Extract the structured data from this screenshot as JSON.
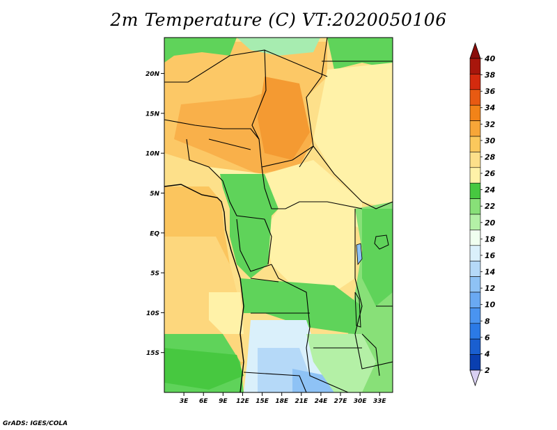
{
  "title": "2m Temperature (C) VT:2020050106",
  "credit": "GrADS: IGES/COLA",
  "map": {
    "lon_labels": [
      "3E",
      "6E",
      "9E",
      "12E",
      "15E",
      "18E",
      "21E",
      "24E",
      "27E",
      "30E",
      "33E"
    ],
    "lat_labels": [
      "20N",
      "15N",
      "10N",
      "5N",
      "EQ",
      "5S",
      "10S",
      "15S"
    ],
    "lon_range": [
      0,
      35
    ],
    "lat_range": [
      -20,
      24.5
    ]
  },
  "colorbar": {
    "levels": [
      "2",
      "4",
      "6",
      "8",
      "10",
      "12",
      "14",
      "16",
      "18",
      "20",
      "22",
      "24",
      "26",
      "28",
      "30",
      "32",
      "34",
      "36",
      "38",
      "40"
    ],
    "colors": [
      "#1a1a8c",
      "#0a3fb0",
      "#1a5fd0",
      "#2b7ae6",
      "#4a94f0",
      "#6aa9f2",
      "#8ec2f5",
      "#b5d9f8",
      "#daf0fb",
      "#f0fff0",
      "#b4f0a6",
      "#88e078",
      "#47c840",
      "#fff2a8",
      "#fde08a",
      "#fbc85c",
      "#f7a638",
      "#f28318",
      "#e85a12",
      "#d42a0e",
      "#a8160c",
      "#8a0d0a"
    ]
  },
  "colors": {
    "ocean_warm": "#fbc55e",
    "ocean_mid": "#fdd77d",
    "green": "#5fd35a",
    "pale_yellow": "#fff2a8",
    "orange": "#f9b04a"
  }
}
